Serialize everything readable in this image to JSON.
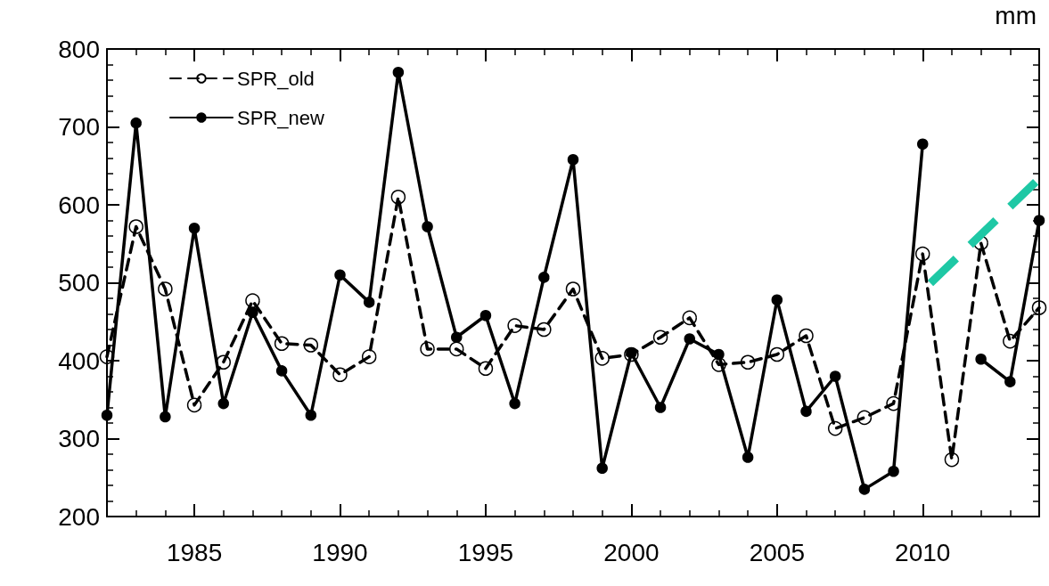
{
  "chart_data": {
    "type": "line",
    "ylabel": "mm",
    "x": [
      1982,
      1983,
      1984,
      1985,
      1986,
      1987,
      1988,
      1989,
      1990,
      1991,
      1992,
      1993,
      1994,
      1995,
      1996,
      1997,
      1998,
      1999,
      2000,
      2001,
      2002,
      2003,
      2004,
      2005,
      2006,
      2007,
      2008,
      2009,
      2010,
      2011,
      2012,
      2013,
      2014
    ],
    "series": [
      {
        "name": "SPR_old",
        "color": "#000000",
        "line_style": "dashed",
        "marker": "circle",
        "values": [
          405,
          572,
          492,
          343,
          398,
          477,
          422,
          420,
          382,
          405,
          610,
          415,
          415,
          390,
          445,
          440,
          492,
          403,
          408,
          430,
          455,
          395,
          398,
          408,
          432,
          313,
          327,
          345,
          537,
          273,
          551,
          425,
          468
        ]
      },
      {
        "name": "SPR_new",
        "color": "#000000",
        "line_style": "solid",
        "marker": "circle",
        "values": [
          330,
          705,
          328,
          570,
          345,
          462,
          387,
          330,
          510,
          475,
          770,
          572,
          430,
          458,
          345,
          507,
          658,
          262,
          410,
          340,
          428,
          408,
          276,
          478,
          335,
          380,
          235,
          258,
          678,
          null,
          402,
          373,
          580
        ]
      }
    ],
    "xlim": [
      1982,
      2014
    ],
    "xticks": [
      1985,
      1990,
      1995,
      2000,
      2005,
      2010
    ],
    "ylim": [
      200,
      800
    ],
    "yticks": [
      200,
      300,
      400,
      500,
      600,
      700,
      800
    ],
    "grid": false,
    "legend": "top left"
  }
}
